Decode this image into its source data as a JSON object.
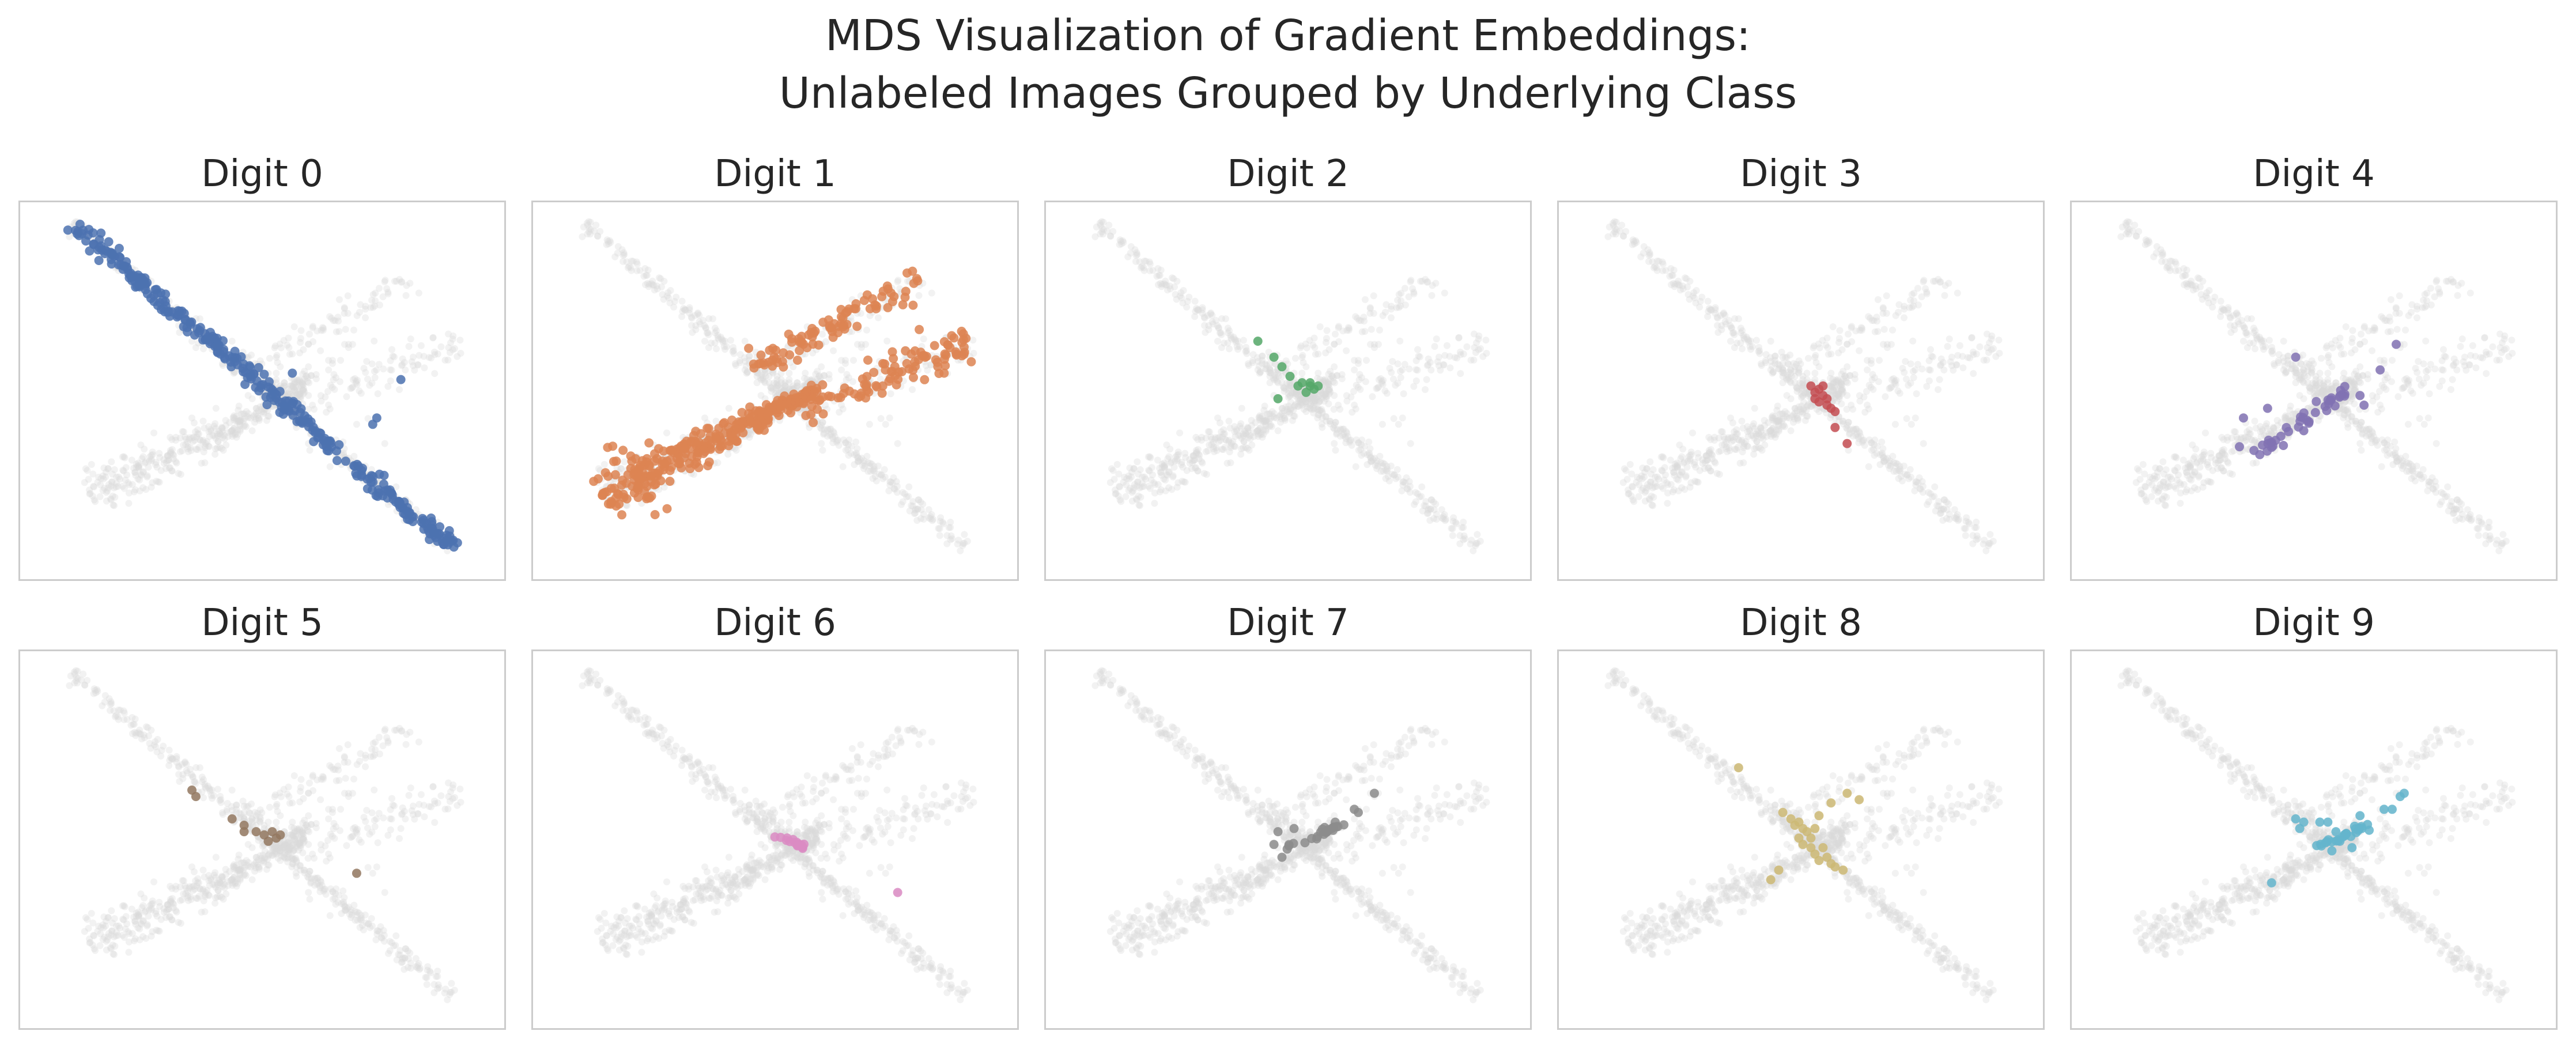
{
  "figure": {
    "title_line1": "MDS Visualization of Gradient Embeddings:",
    "title_line2": "Unlabeled Images Grouped by Underlying Class"
  },
  "chart_data": [
    {
      "type": "scatter",
      "title": "Digit 0",
      "color": "#4c72b0",
      "xlabel": "",
      "ylabel": "",
      "background_color": "#d9d9d9",
      "grid": false,
      "clusters": [
        {
          "kind": "line",
          "from": [
            0.0,
            7.0
          ],
          "to": [
            9.5,
            -3.2
          ],
          "count": 330,
          "spread": 0.12
        },
        {
          "kind": "points",
          "points": [
            [
              5.5,
              2.3
            ],
            [
              5.3,
              1.2
            ],
            [
              5.7,
              0.8
            ],
            [
              8.2,
              2.1
            ],
            [
              7.6,
              0.9
            ],
            [
              7.5,
              0.7
            ]
          ]
        }
      ]
    },
    {
      "type": "scatter",
      "title": "Digit 1",
      "color": "#dd8452",
      "xlabel": "",
      "ylabel": "",
      "background_color": "#d9d9d9",
      "grid": false,
      "clusters": [
        {
          "kind": "fan",
          "from": [
            0.4,
            -1.5
          ],
          "to": [
            5.8,
            1.8
          ],
          "count": 320,
          "width": 0.42
        },
        {
          "kind": "line",
          "from": [
            4.2,
            2.4
          ],
          "to": [
            8.4,
            5.2
          ],
          "count": 90,
          "spread": 0.22
        },
        {
          "kind": "line",
          "from": [
            5.4,
            1.2
          ],
          "to": [
            9.7,
            3.3
          ],
          "count": 100,
          "spread": 0.3
        }
      ]
    },
    {
      "type": "scatter",
      "title": "Digit 2",
      "color": "#55a868",
      "xlabel": "",
      "ylabel": "",
      "background_color": "#d9d9d9",
      "grid": false,
      "clusters": [
        {
          "kind": "points",
          "points": [
            [
              4.0,
              3.3
            ],
            [
              4.4,
              2.8
            ],
            [
              4.6,
              2.5
            ],
            [
              4.8,
              2.2
            ],
            [
              4.5,
              1.5
            ],
            [
              5.0,
              1.9
            ],
            [
              5.1,
              2.0
            ],
            [
              5.3,
              1.9
            ],
            [
              5.4,
              1.8
            ],
            [
              5.2,
              1.7
            ],
            [
              5.5,
              1.9
            ],
            [
              5.3,
              2.0
            ]
          ]
        }
      ]
    },
    {
      "type": "scatter",
      "title": "Digit 3",
      "color": "#c44e52",
      "xlabel": "",
      "ylabel": "",
      "background_color": "#d9d9d9",
      "grid": false,
      "clusters": [
        {
          "kind": "points",
          "points": [
            [
              5.0,
              1.9
            ],
            [
              5.1,
              1.7
            ],
            [
              5.2,
              1.8
            ],
            [
              5.3,
              1.6
            ],
            [
              5.2,
              1.4
            ],
            [
              5.4,
              1.3
            ],
            [
              5.5,
              1.2
            ],
            [
              5.4,
              1.5
            ],
            [
              5.1,
              1.5
            ],
            [
              5.3,
              1.9
            ],
            [
              5.6,
              1.1
            ],
            [
              5.6,
              0.6
            ],
            [
              5.9,
              0.1
            ]
          ]
        }
      ]
    },
    {
      "type": "scatter",
      "title": "Digit 4",
      "color": "#8172b3",
      "xlabel": "",
      "ylabel": "",
      "background_color": "#d9d9d9",
      "grid": false,
      "clusters": [
        {
          "kind": "line",
          "from": [
            3.3,
            -0.2
          ],
          "to": [
            5.6,
            1.8
          ],
          "count": 40,
          "spread": 0.1
        },
        {
          "kind": "points",
          "points": [
            [
              4.3,
              2.8
            ],
            [
              3.6,
              1.2
            ],
            [
              3.0,
              0.9
            ],
            [
              2.9,
              0.0
            ],
            [
              4.5,
              0.5
            ],
            [
              6.4,
              2.4
            ],
            [
              6.8,
              3.2
            ],
            [
              5.9,
              1.6
            ],
            [
              6.0,
              1.3
            ]
          ]
        }
      ]
    },
    {
      "type": "scatter",
      "title": "Digit 5",
      "color": "#937860",
      "xlabel": "",
      "ylabel": "",
      "background_color": "#d9d9d9",
      "grid": false,
      "clusters": [
        {
          "kind": "points",
          "points": [
            [
              3.0,
              3.3
            ],
            [
              3.1,
              3.1
            ],
            [
              4.0,
              2.4
            ],
            [
              4.3,
              2.2
            ],
            [
              4.3,
              2.0
            ],
            [
              4.6,
              2.0
            ],
            [
              4.8,
              1.9
            ],
            [
              4.9,
              1.7
            ],
            [
              5.0,
              2.0
            ],
            [
              5.1,
              1.8
            ],
            [
              5.2,
              1.9
            ],
            [
              7.1,
              0.7
            ]
          ]
        }
      ]
    },
    {
      "type": "scatter",
      "title": "Digit 6",
      "color": "#da8bc3",
      "xlabel": "",
      "ylabel": "",
      "background_color": "#d9d9d9",
      "grid": false,
      "clusters": [
        {
          "kind": "line",
          "from": [
            4.7,
            1.9
          ],
          "to": [
            5.5,
            1.5
          ],
          "count": 18,
          "spread": 0.05
        },
        {
          "kind": "points",
          "points": [
            [
              7.8,
              0.1
            ]
          ]
        }
      ]
    },
    {
      "type": "scatter",
      "title": "Digit 7",
      "color": "#8c8c8c",
      "xlabel": "",
      "ylabel": "",
      "background_color": "#d9d9d9",
      "grid": false,
      "clusters": [
        {
          "kind": "line",
          "from": [
            4.7,
            1.5
          ],
          "to": [
            6.1,
            2.3
          ],
          "count": 24,
          "spread": 0.08
        },
        {
          "kind": "points",
          "points": [
            [
              6.5,
              2.6
            ],
            [
              6.9,
              3.2
            ],
            [
              6.4,
              2.7
            ],
            [
              4.4,
              1.6
            ],
            [
              4.5,
              2.0
            ],
            [
              4.6,
              1.2
            ],
            [
              4.9,
              2.1
            ]
          ]
        }
      ]
    },
    {
      "type": "scatter",
      "title": "Digit 8",
      "color": "#ccb974",
      "xlabel": "",
      "ylabel": "",
      "background_color": "#d9d9d9",
      "grid": false,
      "clusters": [
        {
          "kind": "points",
          "points": [
            [
              3.2,
              4.0
            ],
            [
              4.3,
              2.6
            ],
            [
              4.5,
              2.4
            ],
            [
              4.6,
              2.2
            ],
            [
              4.7,
              2.3
            ],
            [
              4.8,
              2.1
            ],
            [
              4.9,
              2.0
            ],
            [
              5.0,
              1.8
            ],
            [
              5.0,
              1.5
            ],
            [
              5.1,
              1.3
            ],
            [
              5.2,
              1.1
            ],
            [
              5.3,
              1.5
            ],
            [
              5.4,
              1.2
            ],
            [
              4.8,
              1.6
            ],
            [
              5.1,
              2.1
            ],
            [
              5.5,
              1.0
            ],
            [
              5.6,
              0.9
            ],
            [
              5.8,
              0.8
            ],
            [
              5.9,
              3.2
            ],
            [
              5.5,
              2.9
            ],
            [
              5.2,
              2.5
            ],
            [
              6.2,
              3.0
            ],
            [
              4.2,
              0.8
            ],
            [
              4.0,
              0.5
            ],
            [
              4.7,
              1.8
            ]
          ]
        }
      ]
    },
    {
      "type": "scatter",
      "title": "Digit 9",
      "color": "#64b5cd",
      "xlabel": "",
      "ylabel": "",
      "background_color": "#d9d9d9",
      "grid": false,
      "clusters": [
        {
          "kind": "line",
          "from": [
            4.7,
            1.5
          ],
          "to": [
            6.1,
            2.2
          ],
          "count": 26,
          "spread": 0.07
        },
        {
          "kind": "points",
          "points": [
            [
              4.3,
              2.4
            ],
            [
              4.5,
              2.3
            ],
            [
              4.4,
              2.1
            ],
            [
              4.9,
              2.3
            ],
            [
              5.1,
              2.3
            ],
            [
              5.3,
              2.0
            ],
            [
              5.4,
              1.7
            ],
            [
              5.7,
              1.5
            ],
            [
              5.2,
              1.4
            ],
            [
              6.5,
              2.7
            ],
            [
              6.7,
              2.7
            ],
            [
              7.0,
              3.2
            ],
            [
              6.9,
              3.1
            ],
            [
              3.7,
              0.4
            ],
            [
              5.9,
              2.5
            ]
          ]
        }
      ]
    }
  ]
}
